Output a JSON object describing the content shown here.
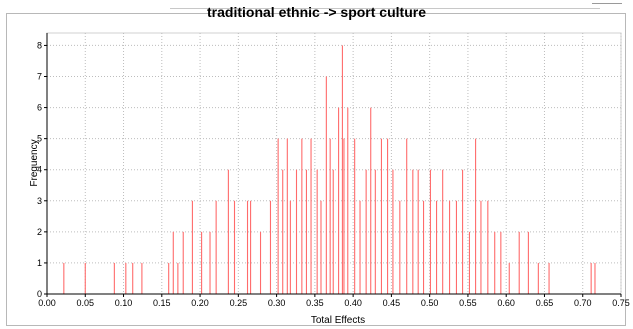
{
  "chart_data": {
    "type": "bar",
    "title": "traditional ethnic  -> sport culture",
    "xlabel": "Total Effects",
    "ylabel": "Frequency",
    "xlim": [
      0.0,
      0.75
    ],
    "ylim": [
      0,
      8.4
    ],
    "x_ticks": [
      "0.00",
      "0.05",
      "0.10",
      "0.15",
      "0.20",
      "0.25",
      "0.30",
      "0.35",
      "0.40",
      "0.45",
      "0.50",
      "0.55",
      "0.60",
      "0.65",
      "0.70",
      "0.75"
    ],
    "y_ticks": [
      "0",
      "1",
      "2",
      "3",
      "4",
      "5",
      "6",
      "7",
      "8"
    ],
    "grid": true,
    "bar_color": "#ff6b6b",
    "series": [
      {
        "x": [
          0.022,
          0.05,
          0.088,
          0.103,
          0.112,
          0.124,
          0.159,
          0.165,
          0.171,
          0.178,
          0.19,
          0.202,
          0.213,
          0.221,
          0.237,
          0.245,
          0.262,
          0.266,
          0.279,
          0.292,
          0.302,
          0.308,
          0.314,
          0.318,
          0.326,
          0.333,
          0.339,
          0.345,
          0.353,
          0.358,
          0.365,
          0.37,
          0.374,
          0.381,
          0.386,
          0.388,
          0.393,
          0.402,
          0.409,
          0.417,
          0.423,
          0.429,
          0.437,
          0.445,
          0.452,
          0.461,
          0.47,
          0.478,
          0.485,
          0.492,
          0.501,
          0.509,
          0.517,
          0.526,
          0.535,
          0.543,
          0.552,
          0.56,
          0.567,
          0.576,
          0.585,
          0.593,
          0.604,
          0.617,
          0.629,
          0.642,
          0.656,
          0.711,
          0.716
        ],
        "y": [
          1,
          1,
          1,
          1,
          1,
          1,
          1,
          2,
          1,
          2,
          3,
          2,
          2,
          3,
          4,
          3,
          3,
          3,
          2,
          3,
          5,
          4,
          5,
          3,
          4,
          5,
          4,
          5,
          4,
          3,
          7,
          5,
          4,
          6,
          8,
          5,
          6,
          5,
          3,
          4,
          6,
          4,
          5,
          5,
          4,
          3,
          5,
          4,
          4,
          3,
          4,
          3,
          4,
          3,
          3,
          4,
          2,
          5,
          3,
          3,
          2,
          2,
          1,
          2,
          2,
          1,
          1,
          1,
          1
        ]
      }
    ]
  }
}
